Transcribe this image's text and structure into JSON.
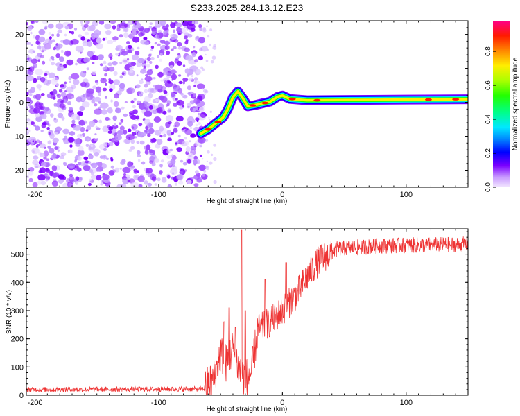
{
  "figure_title": "S233.2025.284.13.12.E23",
  "colors": {
    "snr_line": "#ee3333",
    "axis": "#000000",
    "noise_dark": "#7b00ff",
    "noise_light": "#d9b8ff"
  },
  "chart_data": [
    {
      "type": "heatmap",
      "title": "S233.2025.284.13.12.E23",
      "xlabel": "Height of straight line (km)",
      "ylabel": "Frequency (Hz)",
      "xlim": [
        -207,
        150
      ],
      "ylim": [
        -25,
        24
      ],
      "xticks": [
        -200,
        -100,
        0,
        100
      ],
      "yticks": [
        -20,
        -10,
        0,
        10,
        20
      ],
      "noise_region": [
        -207,
        -63
      ],
      "ridge": [
        {
          "x": -66,
          "f": -9.2
        },
        {
          "x": -60,
          "f": -8.0
        },
        {
          "x": -54,
          "f": -6.2
        },
        {
          "x": -48,
          "f": -4.5
        },
        {
          "x": -44,
          "f": -2.0
        },
        {
          "x": -40,
          "f": 1.5
        },
        {
          "x": -36,
          "f": 3.2
        },
        {
          "x": -32,
          "f": 1.2
        },
        {
          "x": -28,
          "f": -1.2
        },
        {
          "x": -22,
          "f": -0.8
        },
        {
          "x": -16,
          "f": -0.3
        },
        {
          "x": -10,
          "f": 0.2
        },
        {
          "x": -4,
          "f": 1.6
        },
        {
          "x": 0,
          "f": 2.0
        },
        {
          "x": 6,
          "f": 1.0
        },
        {
          "x": 20,
          "f": 0.6
        },
        {
          "x": 60,
          "f": 0.7
        },
        {
          "x": 100,
          "f": 0.8
        },
        {
          "x": 150,
          "f": 0.9
        }
      ],
      "colorbar": {
        "label": "Normalized spectral amplitude",
        "ticks": [
          "0.0",
          "0.2",
          "0.4",
          "0.6",
          "0.8"
        ],
        "tick_values": [
          0.0,
          0.2,
          0.4,
          0.6,
          0.8
        ],
        "range": [
          0,
          0.98
        ]
      }
    },
    {
      "type": "line",
      "xlabel": "Height of straight line (km)",
      "ylabel": "SNR (10 * v/v)",
      "xlim": [
        -207,
        150
      ],
      "ylim": [
        0,
        590
      ],
      "xticks": [
        -200,
        -100,
        0,
        100
      ],
      "yticks": [
        0,
        100,
        200,
        300,
        400,
        500
      ],
      "series": [
        {
          "name": "SNR",
          "color": "#ee3333",
          "trend": [
            {
              "x": -207,
              "y": 20
            },
            {
              "x": -63,
              "y": 22
            },
            {
              "x": -55,
              "y": 60
            },
            {
              "x": -50,
              "y": 150
            },
            {
              "x": -45,
              "y": 110
            },
            {
              "x": -40,
              "y": 170
            },
            {
              "x": -35,
              "y": 90
            },
            {
              "x": -30,
              "y": 60
            },
            {
              "x": -25,
              "y": 80
            },
            {
              "x": -20,
              "y": 230
            },
            {
              "x": -10,
              "y": 260
            },
            {
              "x": 0,
              "y": 300
            },
            {
              "x": 10,
              "y": 350
            },
            {
              "x": 20,
              "y": 420
            },
            {
              "x": 30,
              "y": 480
            },
            {
              "x": 45,
              "y": 520
            },
            {
              "x": 80,
              "y": 530
            },
            {
              "x": 150,
              "y": 535
            }
          ],
          "spikes": [
            {
              "x": -47,
              "y": 260
            },
            {
              "x": -43,
              "y": 310
            },
            {
              "x": -38,
              "y": 240
            },
            {
              "x": -33,
              "y": 585
            },
            {
              "x": -30,
              "y": 300
            },
            {
              "x": -14,
              "y": 410
            },
            {
              "x": 3,
              "y": 470
            }
          ]
        }
      ]
    }
  ]
}
